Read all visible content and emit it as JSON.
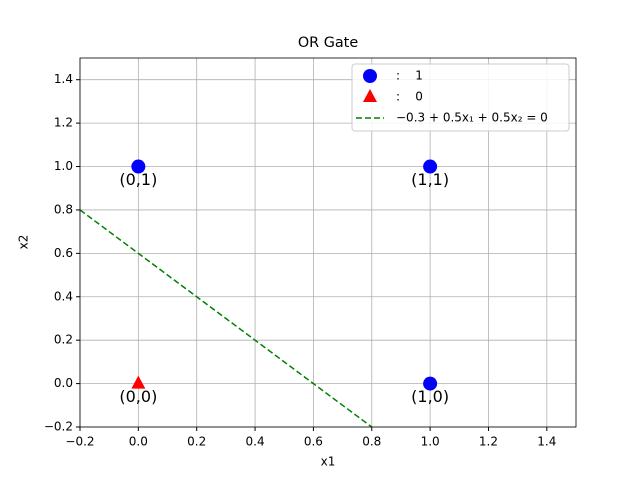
{
  "chart_data": {
    "type": "scatter",
    "title": "OR Gate",
    "x_label": "x1",
    "y_label": "x2",
    "xlim": [
      -0.2,
      1.5
    ],
    "ylim": [
      -0.2,
      1.5
    ],
    "xticks": [
      {
        "value": -0.2,
        "label": "−0.2"
      },
      {
        "value": 0.0,
        "label": "0.0"
      },
      {
        "value": 0.2,
        "label": "0.2"
      },
      {
        "value": 0.4,
        "label": "0.4"
      },
      {
        "value": 0.6,
        "label": "0.6"
      },
      {
        "value": 0.8,
        "label": "0.8"
      },
      {
        "value": 1.0,
        "label": "1.0"
      },
      {
        "value": 1.2,
        "label": "1.2"
      },
      {
        "value": 1.4,
        "label": "1.4"
      }
    ],
    "yticks": [
      {
        "value": -0.2,
        "label": "−0.2"
      },
      {
        "value": 0.0,
        "label": "0.0"
      },
      {
        "value": 0.2,
        "label": "0.2"
      },
      {
        "value": 0.4,
        "label": "0.4"
      },
      {
        "value": 0.6,
        "label": "0.6"
      },
      {
        "value": 0.8,
        "label": "0.8"
      },
      {
        "value": 1.0,
        "label": "1.0"
      },
      {
        "value": 1.2,
        "label": "1.2"
      },
      {
        "value": 1.4,
        "label": "1.4"
      }
    ],
    "grid": true,
    "legend": "upper right",
    "series": [
      {
        "name": ":    1",
        "color": "#0000ff",
        "marker": "circle",
        "x": [
          0,
          1,
          1
        ],
        "values": [
          1,
          1,
          0
        ],
        "labels": [
          "(0,1)",
          "(1,1)",
          "(1,0)"
        ]
      },
      {
        "name": ":    0",
        "color": "#ff0000",
        "marker": "triangle",
        "x": [
          0
        ],
        "values": [
          0
        ],
        "labels": [
          "(0,0)"
        ]
      },
      {
        "name": "−0.3 + 0.5x₁ + 0.5x₂ = 0",
        "color": "#008000",
        "marker": "dashed-line",
        "x": [
          -0.2,
          0.8
        ],
        "values": [
          0.8,
          -0.2
        ]
      }
    ]
  }
}
